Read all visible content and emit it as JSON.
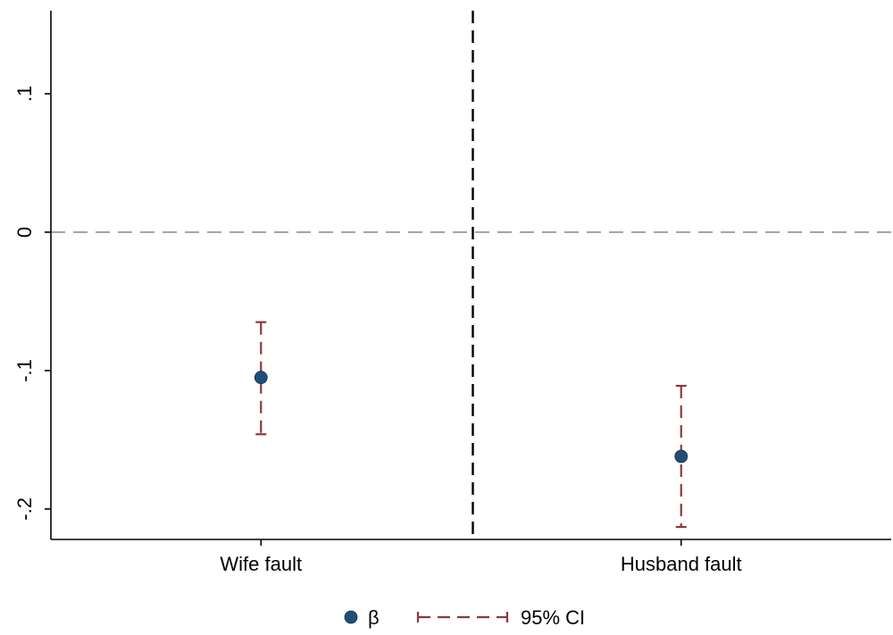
{
  "chart_data": {
    "type": "scatter",
    "title": "",
    "xlabel": "",
    "ylabel": "",
    "categories": [
      "Wife fault",
      "Husband fault"
    ],
    "estimates": [
      -0.105,
      -0.162
    ],
    "ci_low": [
      -0.146,
      -0.213
    ],
    "ci_high": [
      -0.065,
      -0.111
    ],
    "ylim": [
      -0.222,
      0.16
    ],
    "yticks": [
      0.1,
      0,
      -0.1,
      -0.2
    ],
    "ytick_labels": [
      ".1",
      "0",
      "-.1",
      "-.2"
    ],
    "reference_lines": {
      "horizontal_at_y": 0,
      "vertical_between_categories": true
    },
    "grid": false,
    "legend": {
      "placement": "bottom-center",
      "entries": [
        {
          "label": "β",
          "kind": "marker"
        },
        {
          "label": "95% CI",
          "kind": "interval"
        }
      ]
    },
    "colors": {
      "estimate_marker": "#1f4e79",
      "ci": "#8b3a3a",
      "zero_line": "#a6a6a6",
      "divider_line": "#000000",
      "axis": "#000000"
    }
  }
}
